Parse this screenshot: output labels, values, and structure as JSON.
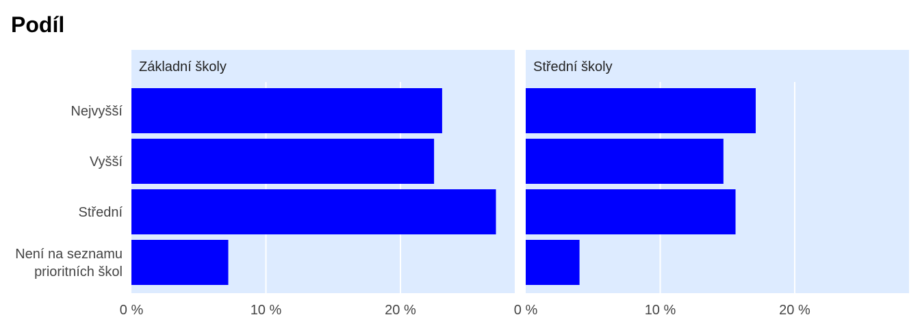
{
  "title": "Podíl",
  "colors": {
    "bar": "#0000ff",
    "panel_bg": "#ddebff",
    "strip_bg": "#ddebff",
    "grid": "#ffffff"
  },
  "chart_data": {
    "type": "bar",
    "orientation": "horizontal",
    "title": "Podíl",
    "categories": [
      "Nejvyšší",
      "Vyšší",
      "Střední",
      "Není na seznamu\nprioritních škol"
    ],
    "xlim": [
      0,
      0.285
    ],
    "ticks": [
      0,
      0.1,
      0.2
    ],
    "tick_labels": [
      "0 %",
      "10 %",
      "20 %"
    ],
    "grid": true,
    "panels": [
      {
        "name": "Základní školy",
        "values": [
          0.231,
          0.225,
          0.271,
          0.072
        ]
      },
      {
        "name": "Střední školy",
        "values": [
          0.171,
          0.147,
          0.156,
          0.04
        ]
      }
    ]
  }
}
